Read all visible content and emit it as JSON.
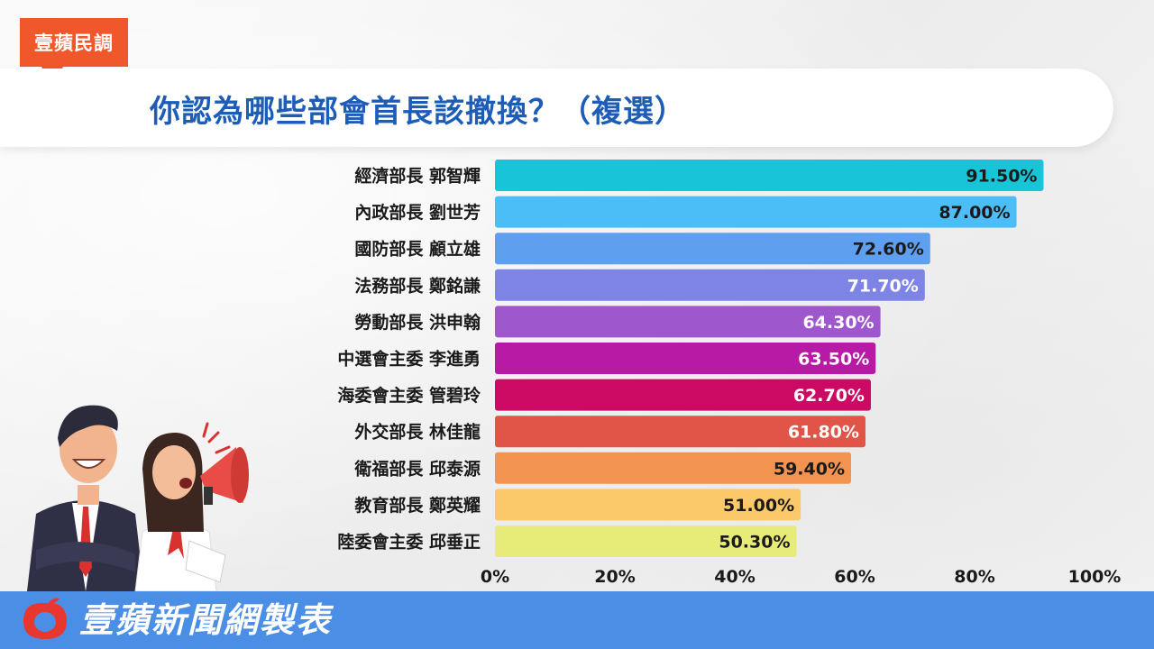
{
  "badge": {
    "label": "壹蘋民調"
  },
  "title": "你認為哪些部會首長該撤換？（複選）",
  "footer": {
    "brand_text": "壹蘋新聞網製表"
  },
  "colors": {
    "accent": "#f0572b",
    "title": "#1d5db8",
    "footer": "#4a8ee6"
  },
  "chart_data": {
    "type": "bar",
    "orientation": "horizontal",
    "categories": [
      "經濟部長 郭智輝",
      "內政部長 劉世芳",
      "國防部長 顧立雄",
      "法務部長 鄭銘謙",
      "勞動部長 洪申翰",
      "中選會主委 李進勇",
      "海委會主委 管碧玲",
      "外交部長 林佳龍",
      "衛福部長 邱泰源",
      "教育部長 鄭英耀",
      "陸委會主委 邱垂正"
    ],
    "values": [
      91.5,
      87.0,
      72.6,
      71.7,
      64.3,
      63.5,
      62.7,
      61.8,
      59.4,
      51.0,
      50.3
    ],
    "value_labels": [
      "91.50%",
      "87.00%",
      "72.60%",
      "71.70%",
      "64.30%",
      "63.50%",
      "62.70%",
      "61.80%",
      "59.40%",
      "51.00%",
      "50.30%"
    ],
    "bar_colors": [
      "#18c4d8",
      "#4bbdf7",
      "#5f9ff0",
      "#7d84e6",
      "#9e57cc",
      "#b71aa5",
      "#cc0a64",
      "#e05547",
      "#f39350",
      "#fcc96a",
      "#e7eb78"
    ],
    "label_colors": [
      "#1a1a1a",
      "#1a1a1a",
      "#1a1a1a",
      "#ffffff",
      "#ffffff",
      "#ffffff",
      "#ffffff",
      "#ffffff",
      "#1a1a1a",
      "#1a1a1a",
      "#1a1a1a"
    ],
    "xlim": [
      0,
      100
    ],
    "xticks": [
      "0%",
      "20%",
      "40%",
      "60%",
      "80%",
      "100%"
    ],
    "xtick_values": [
      0,
      20,
      40,
      60,
      80,
      100
    ],
    "xlabel": "",
    "ylabel": "",
    "grid": false,
    "legend": "none"
  }
}
